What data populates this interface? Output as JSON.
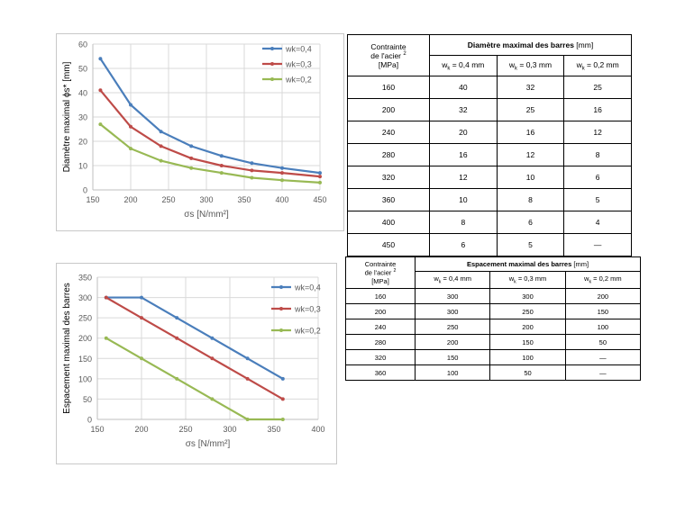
{
  "chart_data": [
    {
      "type": "line",
      "title": "",
      "xlabel": "σs [N/mm²]",
      "ylabel": "Diamètre maximal ϕs* [mm]",
      "xlim": [
        150,
        450
      ],
      "ylim": [
        0,
        60
      ],
      "xticks": [
        150,
        200,
        250,
        300,
        350,
        400,
        450
      ],
      "yticks": [
        0,
        10,
        20,
        30,
        40,
        50,
        60
      ],
      "x": [
        160,
        200,
        240,
        280,
        320,
        360,
        400,
        450
      ],
      "series": [
        {
          "name": "wk=0,4",
          "color": "#4a7ebb",
          "values": [
            54,
            35,
            24,
            18,
            14,
            11,
            9,
            7
          ]
        },
        {
          "name": "wk=0,3",
          "color": "#be4b48",
          "values": [
            41,
            26,
            18,
            13,
            10,
            8,
            7,
            5.5
          ]
        },
        {
          "name": "wk=0,2",
          "color": "#98b954",
          "values": [
            27,
            17,
            12,
            9,
            7,
            5,
            4,
            3
          ]
        }
      ],
      "legend": "top-right",
      "grid": true
    },
    {
      "type": "line",
      "title": "",
      "xlabel": "σs [N/mm²]",
      "ylabel": "Espacement maximal des barres",
      "xlim": [
        150,
        400
      ],
      "ylim": [
        0,
        350
      ],
      "xticks": [
        150,
        200,
        250,
        300,
        350,
        400
      ],
      "yticks": [
        0,
        50,
        100,
        150,
        200,
        250,
        300,
        350
      ],
      "x": [
        160,
        200,
        240,
        280,
        320,
        360
      ],
      "series": [
        {
          "name": "wk=0,4",
          "color": "#4a7ebb",
          "values": [
            300,
            300,
            250,
            200,
            150,
            100
          ]
        },
        {
          "name": "wk=0,3",
          "color": "#be4b48",
          "values": [
            300,
            250,
            200,
            150,
            100,
            50
          ]
        },
        {
          "name": "wk=0,2",
          "color": "#98b954",
          "values": [
            200,
            150,
            100,
            50,
            0,
            0
          ]
        }
      ],
      "legend": "right",
      "grid": true
    }
  ],
  "table1": {
    "stress_header": [
      "Contrainte",
      "de l'acier",
      "[MPa]"
    ],
    "stress_note": "2",
    "group_header_bold": "Diamètre maximal des barres",
    "group_header_unit": "[mm]",
    "col_w_prefix": "w",
    "col_w_sub": "k",
    "cols": [
      " = 0,4 mm",
      " = 0,3 mm",
      " = 0,2 mm"
    ],
    "rows": [
      [
        "160",
        "40",
        "32",
        "25"
      ],
      [
        "200",
        "32",
        "25",
        "16"
      ],
      [
        "240",
        "20",
        "16",
        "12"
      ],
      [
        "280",
        "16",
        "12",
        "8"
      ],
      [
        "320",
        "12",
        "10",
        "6"
      ],
      [
        "360",
        "10",
        "8",
        "5"
      ],
      [
        "400",
        "8",
        "6",
        "4"
      ],
      [
        "450",
        "6",
        "5",
        "—"
      ]
    ]
  },
  "table2": {
    "stress_header": [
      "Contrainte",
      "de l'acier",
      "[MPa]"
    ],
    "stress_note": "2",
    "group_header_bold": "Espacement maximal des barres",
    "group_header_unit": "[mm]",
    "col_w_prefix": "w",
    "col_w_sub": "k",
    "cols": [
      " = 0,4 mm",
      " = 0,3 mm",
      " = 0,2 mm"
    ],
    "rows": [
      [
        "160",
        "300",
        "300",
        "200"
      ],
      [
        "200",
        "300",
        "250",
        "150"
      ],
      [
        "240",
        "250",
        "200",
        "100"
      ],
      [
        "280",
        "200",
        "150",
        "50"
      ],
      [
        "320",
        "150",
        "100",
        "—"
      ],
      [
        "360",
        "100",
        "50",
        "—"
      ]
    ]
  }
}
